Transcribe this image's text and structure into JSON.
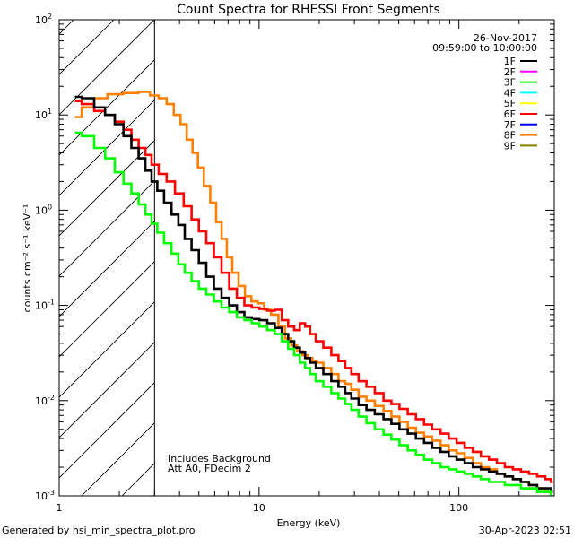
{
  "chart_data": {
    "type": "line",
    "title": "Count Spectra for RHESSI Front Segments",
    "xlabel": "Energy (keV)",
    "ylabel": "counts cm⁻² s⁻¹ keV⁻¹",
    "x_scale": "log",
    "y_scale": "log",
    "xlim": [
      1,
      300
    ],
    "ylim": [
      0.001,
      100
    ],
    "x_ticks": [
      {
        "value": 1,
        "label": "1"
      },
      {
        "value": 10,
        "label": "10"
      },
      {
        "value": 100,
        "label": "100"
      }
    ],
    "y_ticks": [
      {
        "value": 0.001,
        "base": "10",
        "exp": "-3"
      },
      {
        "value": 0.01,
        "base": "10",
        "exp": "-2"
      },
      {
        "value": 0.1,
        "base": "10",
        "exp": "-1"
      },
      {
        "value": 1,
        "base": "10",
        "exp": "0"
      },
      {
        "value": 10,
        "base": "10",
        "exp": "1"
      },
      {
        "value": 100,
        "base": "10",
        "exp": "2"
      }
    ],
    "date": "26-Nov-2017",
    "time_range": "09:59:00 to 10:00:00",
    "annotation_lines": [
      "Includes Background",
      "Att A0, FDecim 2"
    ],
    "excluded_region_kev": [
      1,
      3
    ],
    "threshold_line_kev": 3,
    "legend": [
      {
        "label": "1F",
        "color": "#000000"
      },
      {
        "label": "2F",
        "color": "#ff00ff"
      },
      {
        "label": "3F",
        "color": "#00ff00"
      },
      {
        "label": "4F",
        "color": "#00ffff"
      },
      {
        "label": "5F",
        "color": "#ffff00"
      },
      {
        "label": "6F",
        "color": "#ff0000"
      },
      {
        "label": "7F",
        "color": "#0000ff"
      },
      {
        "label": "8F",
        "color": "#ff8000"
      },
      {
        "label": "9F",
        "color": "#808000"
      }
    ],
    "series": [
      {
        "name": "8F",
        "color": "#ff8000",
        "width": 2.6,
        "points": [
          [
            1.2,
            9.5
          ],
          [
            1.4,
            12
          ],
          [
            1.6,
            15
          ],
          [
            1.9,
            16.5
          ],
          [
            2.3,
            17
          ],
          [
            2.7,
            17.5
          ],
          [
            3.0,
            16
          ],
          [
            3.3,
            15
          ],
          [
            3.6,
            13
          ],
          [
            3.9,
            10
          ],
          [
            4.2,
            8
          ],
          [
            4.5,
            5.5
          ],
          [
            4.8,
            4
          ],
          [
            5.1,
            2.8
          ],
          [
            5.5,
            1.8
          ],
          [
            5.9,
            1.2
          ],
          [
            6.3,
            0.75
          ],
          [
            6.7,
            0.5
          ],
          [
            7.1,
            0.32
          ],
          [
            7.6,
            0.22
          ],
          [
            8.2,
            0.16
          ],
          [
            8.8,
            0.125
          ],
          [
            9.5,
            0.11
          ],
          [
            10.2,
            0.105
          ],
          [
            11,
            0.09
          ],
          [
            12,
            0.08
          ],
          [
            13,
            0.06
          ],
          [
            14,
            0.045
          ],
          [
            15,
            0.038
          ],
          [
            16,
            0.033
          ],
          [
            17,
            0.03
          ],
          [
            18,
            0.028
          ],
          [
            19,
            0.026
          ],
          [
            20,
            0.025
          ],
          [
            22,
            0.022
          ],
          [
            24,
            0.019
          ],
          [
            26,
            0.016
          ],
          [
            28,
            0.015
          ],
          [
            30,
            0.013
          ],
          [
            33,
            0.011
          ],
          [
            36,
            0.01
          ],
          [
            40,
            0.0088
          ],
          [
            44,
            0.0078
          ],
          [
            48,
            0.0068
          ],
          [
            53,
            0.006
          ],
          [
            58,
            0.0052
          ],
          [
            64,
            0.0046
          ],
          [
            70,
            0.0042
          ],
          [
            77,
            0.0038
          ],
          [
            85,
            0.0034
          ],
          [
            93,
            0.003
          ],
          [
            102,
            0.0028
          ],
          [
            112,
            0.0025
          ],
          [
            123,
            0.0022
          ],
          [
            135,
            0.002
          ],
          [
            148,
            0.0019
          ],
          [
            162,
            0.0017
          ],
          [
            178,
            0.0016
          ],
          [
            195,
            0.0015
          ],
          [
            214,
            0.0014
          ],
          [
            235,
            0.0013
          ],
          [
            258,
            0.0012
          ],
          [
            283,
            0.0011
          ],
          [
            295,
            0.001
          ]
        ]
      },
      {
        "name": "6F",
        "color": "#ff0000",
        "width": 2.6,
        "points": [
          [
            1.2,
            14
          ],
          [
            1.4,
            13
          ],
          [
            1.6,
            11
          ],
          [
            1.8,
            10
          ],
          [
            2.0,
            8.5
          ],
          [
            2.2,
            7
          ],
          [
            2.4,
            5.5
          ],
          [
            2.6,
            4.5
          ],
          [
            2.8,
            3.8
          ],
          [
            3.0,
            3.0
          ],
          [
            3.3,
            2.4
          ],
          [
            3.6,
            2.0
          ],
          [
            4.0,
            1.5
          ],
          [
            4.4,
            1.1
          ],
          [
            4.8,
            0.8
          ],
          [
            5.2,
            0.6
          ],
          [
            5.7,
            0.45
          ],
          [
            6.2,
            0.32
          ],
          [
            6.8,
            0.22
          ],
          [
            7.4,
            0.15
          ],
          [
            8.1,
            0.12
          ],
          [
            8.8,
            0.1
          ],
          [
            9.6,
            0.095
          ],
          [
            10.5,
            0.092
          ],
          [
            11.5,
            0.088
          ],
          [
            12.5,
            0.09
          ],
          [
            13.5,
            0.07
          ],
          [
            14.5,
            0.06
          ],
          [
            15.5,
            0.055
          ],
          [
            16.5,
            0.065
          ],
          [
            17.5,
            0.06
          ],
          [
            18.5,
            0.05
          ],
          [
            20,
            0.042
          ],
          [
            22,
            0.036
          ],
          [
            24,
            0.03
          ],
          [
            26,
            0.026
          ],
          [
            28,
            0.022
          ],
          [
            30,
            0.019
          ],
          [
            33,
            0.016
          ],
          [
            36,
            0.014
          ],
          [
            40,
            0.012
          ],
          [
            44,
            0.01
          ],
          [
            48,
            0.0092
          ],
          [
            53,
            0.0082
          ],
          [
            58,
            0.0072
          ],
          [
            64,
            0.0064
          ],
          [
            70,
            0.0056
          ],
          [
            77,
            0.005
          ],
          [
            85,
            0.0045
          ],
          [
            93,
            0.004
          ],
          [
            102,
            0.0036
          ],
          [
            112,
            0.0032
          ],
          [
            123,
            0.0029
          ],
          [
            135,
            0.0026
          ],
          [
            148,
            0.0024
          ],
          [
            162,
            0.0022
          ],
          [
            178,
            0.002
          ],
          [
            195,
            0.0019
          ],
          [
            214,
            0.0018
          ],
          [
            235,
            0.0017
          ],
          [
            258,
            0.0016
          ],
          [
            283,
            0.0015
          ],
          [
            295,
            0.0014
          ]
        ]
      },
      {
        "name": "1F",
        "color": "#000000",
        "width": 2.6,
        "points": [
          [
            1.2,
            15.5
          ],
          [
            1.4,
            15
          ],
          [
            1.6,
            12
          ],
          [
            1.8,
            10
          ],
          [
            2.0,
            8
          ],
          [
            2.2,
            6
          ],
          [
            2.4,
            4.5
          ],
          [
            2.6,
            3.5
          ],
          [
            2.8,
            2.6
          ],
          [
            3.0,
            2.0
          ],
          [
            3.2,
            1.6
          ],
          [
            3.5,
            1.2
          ],
          [
            3.8,
            0.9
          ],
          [
            4.1,
            0.7
          ],
          [
            4.4,
            0.5
          ],
          [
            4.8,
            0.38
          ],
          [
            5.2,
            0.28
          ],
          [
            5.7,
            0.2
          ],
          [
            6.2,
            0.15
          ],
          [
            6.8,
            0.12
          ],
          [
            7.4,
            0.1
          ],
          [
            8.1,
            0.085
          ],
          [
            8.8,
            0.075
          ],
          [
            9.6,
            0.072
          ],
          [
            10.5,
            0.07
          ],
          [
            11.5,
            0.065
          ],
          [
            12.5,
            0.058
          ],
          [
            13.5,
            0.05
          ],
          [
            14.5,
            0.042
          ],
          [
            15.5,
            0.036
          ],
          [
            16.5,
            0.032
          ],
          [
            17.5,
            0.028
          ],
          [
            18.5,
            0.025
          ],
          [
            20,
            0.022
          ],
          [
            22,
            0.019
          ],
          [
            24,
            0.016
          ],
          [
            26,
            0.014
          ],
          [
            28,
            0.012
          ],
          [
            30,
            0.0105
          ],
          [
            33,
            0.009
          ],
          [
            36,
            0.008
          ],
          [
            40,
            0.0072
          ],
          [
            44,
            0.0064
          ],
          [
            48,
            0.0057
          ],
          [
            53,
            0.005
          ],
          [
            58,
            0.0045
          ],
          [
            64,
            0.004
          ],
          [
            70,
            0.0036
          ],
          [
            77,
            0.0032
          ],
          [
            85,
            0.0029
          ],
          [
            93,
            0.0026
          ],
          [
            102,
            0.0024
          ],
          [
            112,
            0.0022
          ],
          [
            123,
            0.002
          ],
          [
            135,
            0.0019
          ],
          [
            148,
            0.0018
          ],
          [
            162,
            0.0017
          ],
          [
            178,
            0.0016
          ],
          [
            195,
            0.0015
          ],
          [
            214,
            0.0014
          ],
          [
            235,
            0.0013
          ],
          [
            258,
            0.0012
          ],
          [
            283,
            0.0012
          ],
          [
            295,
            0.0011
          ]
        ]
      },
      {
        "name": "3F",
        "color": "#00ff00",
        "width": 2.6,
        "points": [
          [
            1.2,
            6.5
          ],
          [
            1.4,
            6.0
          ],
          [
            1.6,
            4.5
          ],
          [
            1.8,
            3.5
          ],
          [
            2.0,
            2.5
          ],
          [
            2.2,
            1.9
          ],
          [
            2.4,
            1.5
          ],
          [
            2.6,
            1.15
          ],
          [
            2.8,
            0.9
          ],
          [
            3.0,
            0.72
          ],
          [
            3.2,
            0.58
          ],
          [
            3.5,
            0.45
          ],
          [
            3.8,
            0.35
          ],
          [
            4.1,
            0.27
          ],
          [
            4.4,
            0.22
          ],
          [
            4.8,
            0.18
          ],
          [
            5.2,
            0.15
          ],
          [
            5.7,
            0.13
          ],
          [
            6.2,
            0.11
          ],
          [
            6.8,
            0.095
          ],
          [
            7.4,
            0.085
          ],
          [
            8.1,
            0.075
          ],
          [
            8.8,
            0.07
          ],
          [
            9.6,
            0.065
          ],
          [
            10.5,
            0.06
          ],
          [
            11.5,
            0.055
          ],
          [
            12.5,
            0.05
          ],
          [
            13.5,
            0.042
          ],
          [
            14.5,
            0.035
          ],
          [
            15.5,
            0.03
          ],
          [
            16.5,
            0.025
          ],
          [
            17.5,
            0.022
          ],
          [
            18.5,
            0.019
          ],
          [
            20,
            0.016
          ],
          [
            22,
            0.014
          ],
          [
            24,
            0.012
          ],
          [
            26,
            0.0105
          ],
          [
            28,
            0.0092
          ],
          [
            30,
            0.008
          ],
          [
            33,
            0.0068
          ],
          [
            36,
            0.0058
          ],
          [
            40,
            0.005
          ],
          [
            44,
            0.0044
          ],
          [
            48,
            0.0039
          ],
          [
            53,
            0.0034
          ],
          [
            58,
            0.003
          ],
          [
            64,
            0.0027
          ],
          [
            70,
            0.0024
          ],
          [
            77,
            0.0022
          ],
          [
            85,
            0.002
          ],
          [
            93,
            0.0019
          ],
          [
            102,
            0.0018
          ],
          [
            112,
            0.0017
          ],
          [
            123,
            0.0016
          ],
          [
            135,
            0.0015
          ],
          [
            148,
            0.0014
          ],
          [
            162,
            0.0014
          ],
          [
            178,
            0.0013
          ],
          [
            195,
            0.0013
          ],
          [
            214,
            0.0012
          ],
          [
            235,
            0.0012
          ],
          [
            258,
            0.0011
          ],
          [
            283,
            0.0011
          ],
          [
            295,
            0.001
          ]
        ]
      }
    ]
  },
  "footer": {
    "left": "Generated by hsi_min_spectra_plot.pro",
    "right": "30-Apr-2023 02:51"
  }
}
